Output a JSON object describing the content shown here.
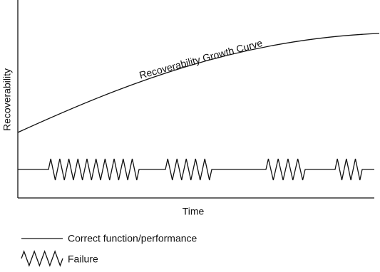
{
  "axes": {
    "y_label": "Recoverability",
    "x_label": "Time"
  },
  "curve": {
    "label": "Recoverability Growth Curve"
  },
  "legend": [
    {
      "label": "Correct function/performance"
    },
    {
      "label": "Failure"
    }
  ]
}
